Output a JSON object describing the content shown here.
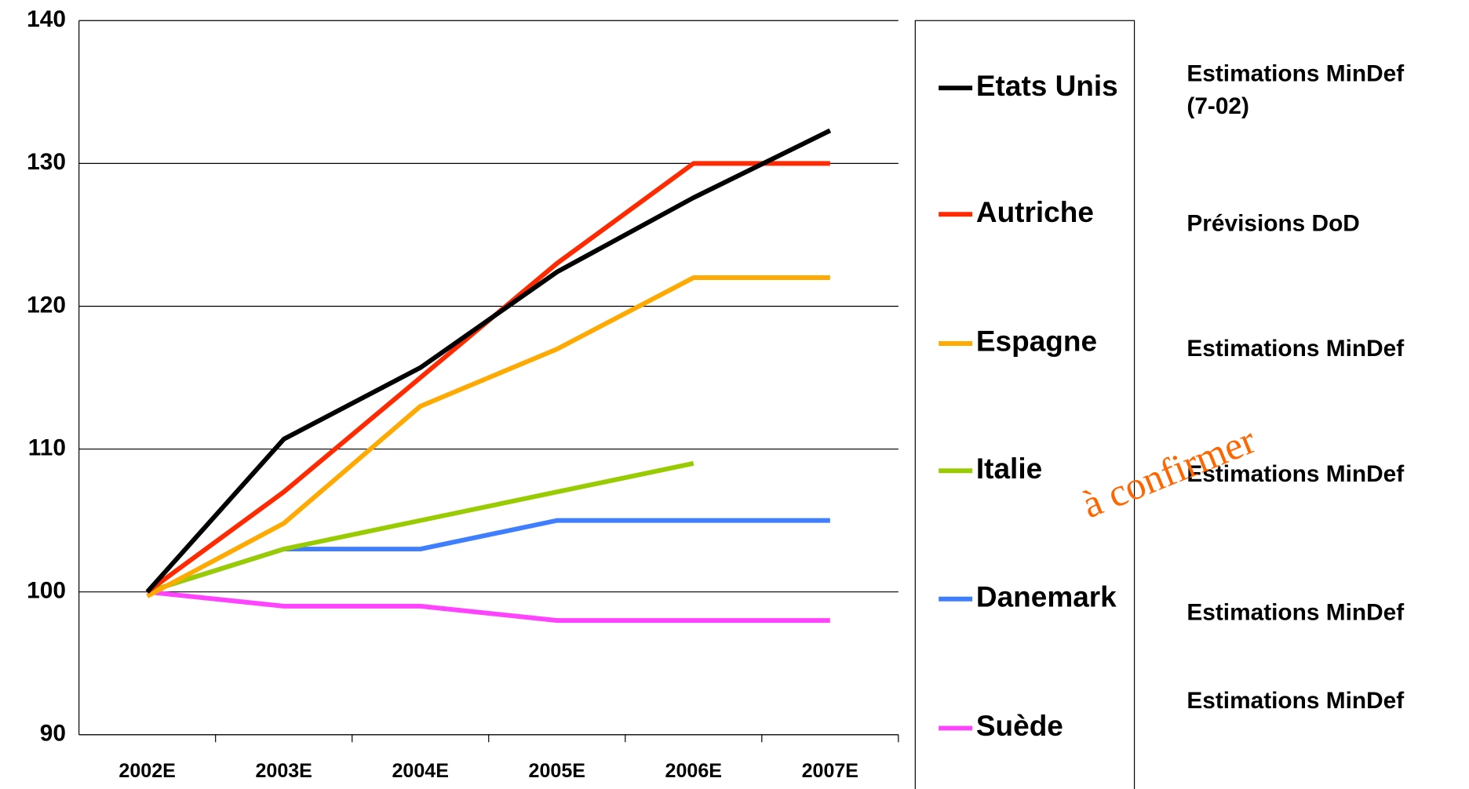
{
  "chart_data": {
    "type": "line",
    "categories": [
      "2002E",
      "2003E",
      "2004E",
      "2005E",
      "2006E",
      "2007E"
    ],
    "series": [
      {
        "name": "Etats Unis",
        "color": "#000000",
        "values": [
          100,
          110.7,
          115.7,
          122.4,
          127.6,
          132.3
        ]
      },
      {
        "name": "Autriche",
        "color": "#ff2a00",
        "values": [
          100,
          107,
          115,
          123,
          130,
          130
        ]
      },
      {
        "name": "Espagne",
        "color": "#ffaa00",
        "values": [
          99.7,
          104.8,
          113,
          117,
          122,
          122
        ]
      },
      {
        "name": "Italie",
        "color": "#99cc00",
        "values": [
          100,
          103,
          105,
          107,
          109,
          null
        ]
      },
      {
        "name": "Danemark",
        "color": "#3f7fff",
        "values": [
          100,
          103,
          103,
          105,
          105,
          105
        ]
      },
      {
        "name": "Suède",
        "color": "#ff44ff",
        "values": [
          100,
          99,
          99,
          98,
          98,
          98
        ]
      }
    ],
    "ylim": [
      90,
      140
    ],
    "yticks": [
      90,
      100,
      110,
      120,
      130,
      140
    ],
    "grid": true,
    "annotations": [
      "Estimations MinDef",
      "(7-02)",
      "Prévisions DoD",
      "Estimations MinDef",
      "Estimations MinDef",
      "Estimations MinDef",
      "Estimations MinDef"
    ],
    "overlay": "à confirmer"
  }
}
